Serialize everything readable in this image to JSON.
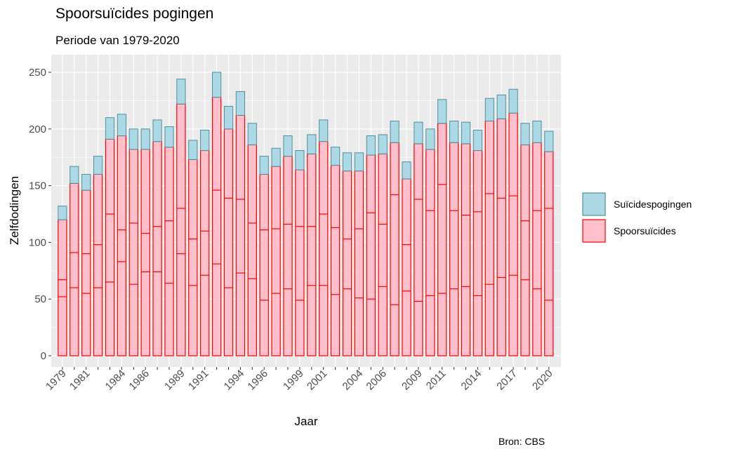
{
  "chart_data": {
    "type": "bar",
    "title": "Spoorsuïcides pogingen",
    "subtitle": "Periode van 1979-2020",
    "xlabel": "Jaar",
    "ylabel": "Zelfdodingen",
    "caption": "Bron: CBS",
    "ylim": [
      0,
      260
    ],
    "y_ticks": [
      0,
      50,
      100,
      150,
      200,
      250
    ],
    "x_tick_labels": [
      "1979",
      "1981",
      "1984",
      "1986",
      "1989",
      "1991",
      "1994",
      "1996",
      "1999",
      "2001",
      "2004",
      "2006",
      "2009",
      "2011",
      "2014",
      "2017",
      "2020"
    ],
    "grid": true,
    "stacked": true,
    "legend_position": "right",
    "categories": [
      1979,
      1980,
      1981,
      1982,
      1983,
      1984,
      1985,
      1986,
      1987,
      1988,
      1989,
      1990,
      1991,
      1992,
      1993,
      1994,
      1995,
      1996,
      1997,
      1998,
      1999,
      2000,
      2001,
      2002,
      2003,
      2004,
      2005,
      2006,
      2007,
      2008,
      2009,
      2010,
      2011,
      2012,
      2013,
      2014,
      2015,
      2016,
      2017,
      2018,
      2019,
      2020
    ],
    "series": [
      {
        "name": "Spoorsuïcides",
        "fill": "#ffc0cb",
        "stroke": "#ff0000",
        "values": [
          120,
          152,
          146,
          160,
          191,
          194,
          182,
          182,
          189,
          184,
          222,
          173,
          181,
          228,
          200,
          212,
          186,
          160,
          167,
          176,
          164,
          178,
          189,
          168,
          163,
          163,
          177,
          178,
          188,
          156,
          187,
          182,
          205,
          188,
          187,
          181,
          207,
          209,
          214,
          186,
          188,
          180
        ]
      },
      {
        "name": "Suïcidespogingen",
        "fill": "#add8e6",
        "stroke": "#4f8f9c",
        "values": [
          12,
          15,
          14,
          16,
          19,
          19,
          18,
          18,
          19,
          18,
          22,
          17,
          18,
          22,
          20,
          21,
          19,
          16,
          16,
          18,
          17,
          17,
          19,
          16,
          16,
          16,
          17,
          17,
          19,
          15,
          19,
          18,
          21,
          19,
          19,
          18,
          20,
          21,
          21,
          19,
          19,
          18
        ]
      }
    ],
    "inner_segments": [
      [
        52,
        67
      ],
      [
        60,
        91
      ],
      [
        55,
        90
      ],
      [
        60,
        98
      ],
      [
        65,
        125
      ],
      [
        83,
        111
      ],
      [
        63,
        117
      ],
      [
        74,
        108
      ],
      [
        74,
        114
      ],
      [
        64,
        119
      ],
      [
        90,
        130
      ],
      [
        62,
        103
      ],
      [
        71,
        110
      ],
      [
        81,
        146
      ],
      [
        60,
        139
      ],
      [
        73,
        138
      ],
      [
        68,
        117
      ],
      [
        49,
        111
      ],
      [
        55,
        112
      ],
      [
        59,
        116
      ],
      [
        49,
        114
      ],
      [
        62,
        114
      ],
      [
        62,
        125
      ],
      [
        54,
        113
      ],
      [
        59,
        103
      ],
      [
        51,
        112
      ],
      [
        50,
        126
      ],
      [
        61,
        116
      ],
      [
        45,
        142
      ],
      [
        57,
        98
      ],
      [
        48,
        138
      ],
      [
        53,
        128
      ],
      [
        55,
        151
      ],
      [
        59,
        128
      ],
      [
        61,
        124
      ],
      [
        53,
        127
      ],
      [
        63,
        143
      ],
      [
        69,
        139
      ],
      [
        71,
        141
      ],
      [
        67,
        119
      ],
      [
        59,
        128
      ],
      [
        49,
        130
      ]
    ]
  }
}
